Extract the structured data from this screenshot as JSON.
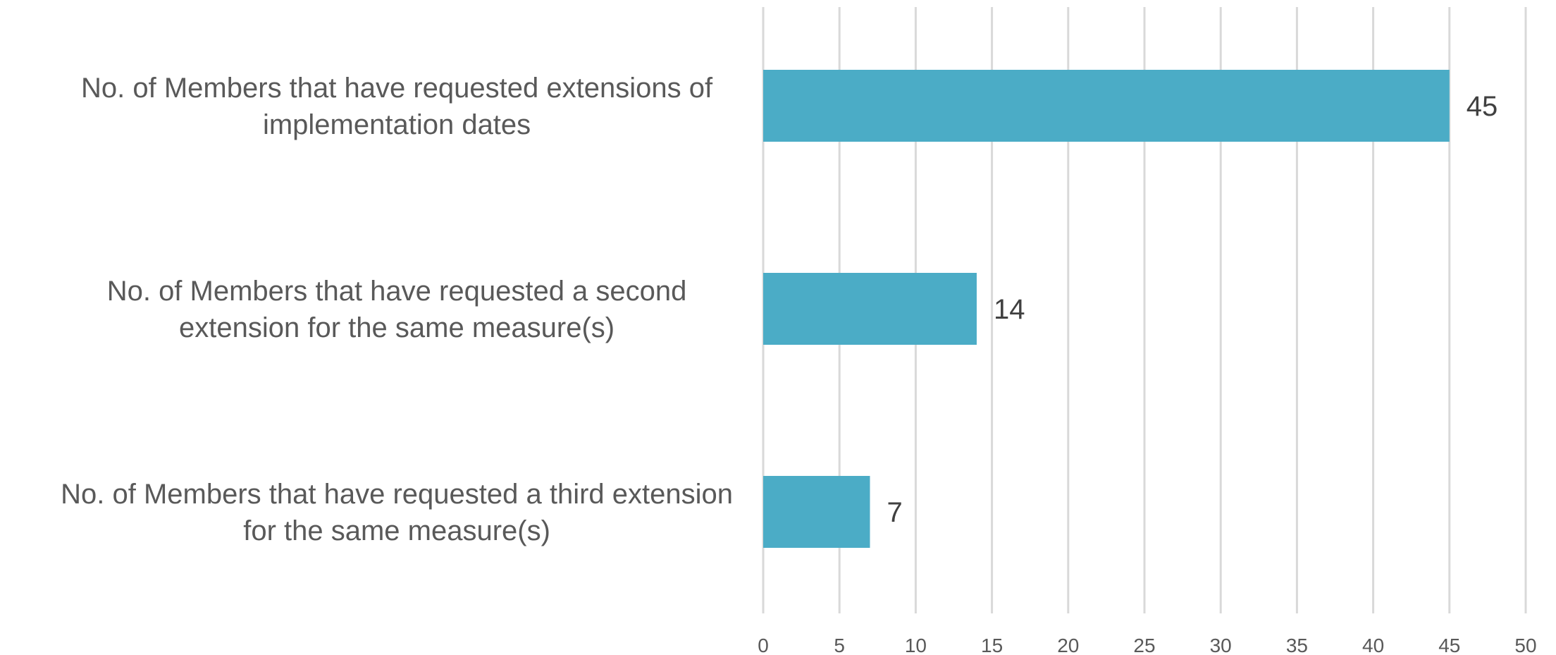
{
  "chart_data": {
    "type": "bar",
    "orientation": "horizontal",
    "title": "",
    "xlabel": "",
    "ylabel": "",
    "xlim": [
      0,
      50
    ],
    "tick_step": 5,
    "grid": true,
    "legend": "none",
    "categories": [
      [
        "No. of Members that have requested extensions of",
        "implementation dates"
      ],
      [
        "No. of Members that have requested a second",
        "extension for the same measure(s)"
      ],
      [
        "No. of Members that have requested a third extension",
        "for the same measure(s)"
      ]
    ],
    "values": [
      45,
      14,
      7
    ],
    "data_labels": [
      "45",
      "14",
      "7"
    ],
    "colors": {
      "bar": "#4BACC6",
      "grid": "#D9D9D9",
      "category_text": "#595959",
      "tick_text": "#595959",
      "value_text": "#404040"
    }
  }
}
